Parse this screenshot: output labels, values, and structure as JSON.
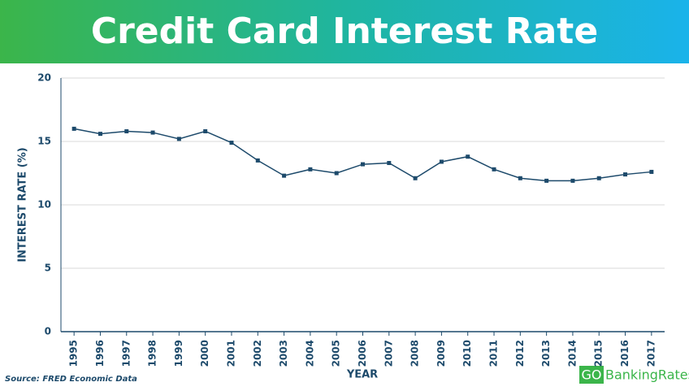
{
  "chart_data": {
    "type": "line",
    "title": "Credit Card Interest Rate",
    "x": [
      1995,
      1996,
      1997,
      1998,
      1999,
      2000,
      2001,
      2002,
      2003,
      2004,
      2005,
      2006,
      2007,
      2008,
      2009,
      2010,
      2011,
      2012,
      2013,
      2014,
      2015,
      2016,
      2017
    ],
    "series": [
      {
        "name": "Credit card interest rate",
        "color": "#1d4a6b",
        "values": [
          16.0,
          15.6,
          15.8,
          15.7,
          15.2,
          15.8,
          14.9,
          13.5,
          12.3,
          12.8,
          12.5,
          13.2,
          13.3,
          12.1,
          13.4,
          13.8,
          12.8,
          12.1,
          11.9,
          11.9,
          12.1,
          12.4,
          12.6
        ]
      }
    ],
    "xlim": [
      1994.5,
      2017.5
    ],
    "xticks": [
      1995,
      1996,
      1997,
      1998,
      1999,
      2000,
      2001,
      2002,
      2003,
      2004,
      2005,
      2006,
      2007,
      2008,
      2009,
      2010,
      2011,
      2012,
      2013,
      2014,
      2015,
      2016,
      2017
    ],
    "ylim": [
      0,
      20
    ],
    "yticks": [
      0,
      5,
      10,
      15,
      20
    ],
    "grid": true,
    "xlabel": "YEAR",
    "ylabel": "INTEREST RATE (%)",
    "source": "Source: FRED Economic Data"
  },
  "logo": {
    "badge": "GO",
    "name": "BankingRates"
  }
}
